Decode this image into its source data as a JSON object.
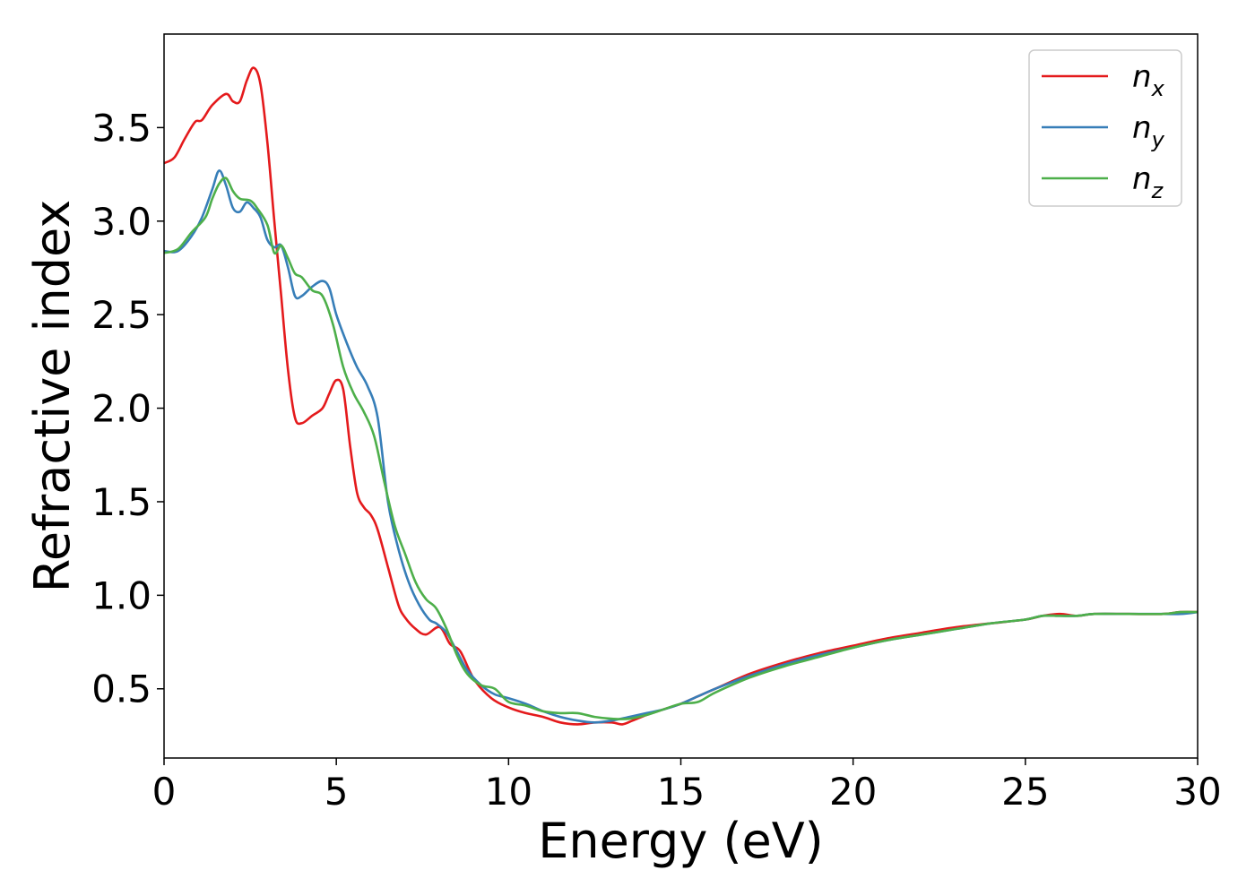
{
  "chart_data": {
    "type": "line",
    "xlabel": "Energy (eV)",
    "ylabel": "Refractive index",
    "xlim": [
      0,
      30
    ],
    "ylim": [
      0.13,
      4.0
    ],
    "xticks": [
      0,
      5,
      10,
      15,
      20,
      25,
      30
    ],
    "xtick_labels": [
      "0",
      "5",
      "10",
      "15",
      "20",
      "25",
      "30"
    ],
    "yticks": [
      0.5,
      1.0,
      1.5,
      2.0,
      2.5,
      3.0,
      3.5
    ],
    "ytick_labels": [
      "0.5",
      "1.0",
      "1.5",
      "2.0",
      "2.5",
      "3.0",
      "3.5"
    ],
    "grid": false,
    "legend_position": "top-right",
    "series": [
      {
        "name": "n_x",
        "label_main": "n",
        "label_sub": "x",
        "color": "#e41a1c",
        "x": [
          0,
          0.3,
          0.6,
          0.9,
          1.1,
          1.4,
          1.8,
          2.0,
          2.2,
          2.4,
          2.6,
          2.8,
          3.0,
          3.2,
          3.4,
          3.6,
          3.8,
          4.0,
          4.3,
          4.6,
          4.8,
          5.0,
          5.2,
          5.4,
          5.6,
          5.8,
          6.0,
          6.2,
          6.5,
          6.8,
          7.0,
          7.3,
          7.6,
          8.0,
          8.3,
          8.6,
          9.0,
          9.5,
          10.0,
          10.5,
          11.0,
          11.5,
          12.0,
          12.5,
          13.0,
          13.3,
          13.6,
          14.0,
          14.5,
          15.0,
          15.5,
          16.0,
          17.0,
          18.0,
          19.0,
          20.0,
          21.0,
          22.0,
          23.0,
          24.0,
          25.0,
          25.5,
          26.0,
          26.5,
          27.0,
          28.0,
          29.0,
          29.5,
          30.0
        ],
        "y": [
          3.31,
          3.34,
          3.44,
          3.53,
          3.54,
          3.62,
          3.68,
          3.64,
          3.64,
          3.75,
          3.82,
          3.73,
          3.42,
          3.0,
          2.6,
          2.2,
          1.95,
          1.92,
          1.96,
          2.0,
          2.08,
          2.15,
          2.1,
          1.8,
          1.55,
          1.47,
          1.43,
          1.35,
          1.15,
          0.95,
          0.88,
          0.82,
          0.79,
          0.83,
          0.74,
          0.7,
          0.55,
          0.45,
          0.4,
          0.37,
          0.35,
          0.32,
          0.31,
          0.32,
          0.32,
          0.31,
          0.33,
          0.36,
          0.39,
          0.42,
          0.46,
          0.5,
          0.58,
          0.64,
          0.69,
          0.73,
          0.77,
          0.8,
          0.83,
          0.85,
          0.87,
          0.89,
          0.9,
          0.89,
          0.9,
          0.9,
          0.9,
          0.91,
          0.91
        ]
      },
      {
        "name": "n_y",
        "label_main": "n",
        "label_sub": "y",
        "color": "#377eb8",
        "x": [
          0,
          0.4,
          0.8,
          1.1,
          1.4,
          1.6,
          1.8,
          2.0,
          2.2,
          2.4,
          2.6,
          2.8,
          3.0,
          3.2,
          3.4,
          3.6,
          3.8,
          4.0,
          4.3,
          4.6,
          4.8,
          5.0,
          5.3,
          5.6,
          5.9,
          6.2,
          6.5,
          6.8,
          7.1,
          7.4,
          7.7,
          7.9,
          8.2,
          8.5,
          8.8,
          9.2,
          9.6,
          10.0,
          10.5,
          11.0,
          11.5,
          12.0,
          12.5,
          13.0,
          13.5,
          14.0,
          14.5,
          15.0,
          15.5,
          16.0,
          17.0,
          18.0,
          19.0,
          20.0,
          21.0,
          22.0,
          23.0,
          24.0,
          25.0,
          25.5,
          26.0,
          26.5,
          27.0,
          28.0,
          29.0,
          29.5,
          30.0
        ],
        "y": [
          2.84,
          2.84,
          2.92,
          3.02,
          3.17,
          3.27,
          3.19,
          3.07,
          3.05,
          3.1,
          3.07,
          3.02,
          2.9,
          2.86,
          2.87,
          2.75,
          2.6,
          2.6,
          2.65,
          2.68,
          2.64,
          2.5,
          2.35,
          2.22,
          2.12,
          1.95,
          1.5,
          1.25,
          1.07,
          0.95,
          0.87,
          0.85,
          0.8,
          0.7,
          0.6,
          0.52,
          0.47,
          0.45,
          0.42,
          0.38,
          0.35,
          0.33,
          0.32,
          0.33,
          0.35,
          0.37,
          0.39,
          0.42,
          0.46,
          0.5,
          0.57,
          0.63,
          0.68,
          0.72,
          0.76,
          0.79,
          0.82,
          0.85,
          0.87,
          0.89,
          0.89,
          0.89,
          0.9,
          0.9,
          0.9,
          0.9,
          0.91
        ]
      },
      {
        "name": "n_z",
        "label_main": "n",
        "label_sub": "z",
        "color": "#4daf4a",
        "x": [
          0,
          0.4,
          0.8,
          1.2,
          1.4,
          1.6,
          1.8,
          2.0,
          2.2,
          2.5,
          2.7,
          3.0,
          3.2,
          3.4,
          3.6,
          3.8,
          4.0,
          4.3,
          4.6,
          4.9,
          5.2,
          5.5,
          5.8,
          6.1,
          6.4,
          6.7,
          7.0,
          7.3,
          7.6,
          7.9,
          8.2,
          8.5,
          8.8,
          9.2,
          9.6,
          10.0,
          10.5,
          11.0,
          11.5,
          12.0,
          12.5,
          13.0,
          13.5,
          14.0,
          14.5,
          15.0,
          15.5,
          16.0,
          17.0,
          18.0,
          19.0,
          20.0,
          21.0,
          22.0,
          23.0,
          24.0,
          25.0,
          25.5,
          26.0,
          26.5,
          27.0,
          28.0,
          29.0,
          29.5,
          30.0
        ],
        "y": [
          2.83,
          2.85,
          2.94,
          3.02,
          3.12,
          3.2,
          3.23,
          3.16,
          3.12,
          3.11,
          3.07,
          2.98,
          2.83,
          2.87,
          2.8,
          2.72,
          2.7,
          2.63,
          2.6,
          2.45,
          2.22,
          2.08,
          1.98,
          1.85,
          1.6,
          1.37,
          1.22,
          1.07,
          0.98,
          0.93,
          0.82,
          0.68,
          0.58,
          0.52,
          0.5,
          0.43,
          0.41,
          0.38,
          0.37,
          0.37,
          0.35,
          0.34,
          0.34,
          0.36,
          0.39,
          0.42,
          0.43,
          0.48,
          0.56,
          0.62,
          0.67,
          0.72,
          0.76,
          0.79,
          0.82,
          0.85,
          0.87,
          0.89,
          0.89,
          0.89,
          0.9,
          0.9,
          0.9,
          0.91,
          0.91
        ]
      }
    ]
  }
}
